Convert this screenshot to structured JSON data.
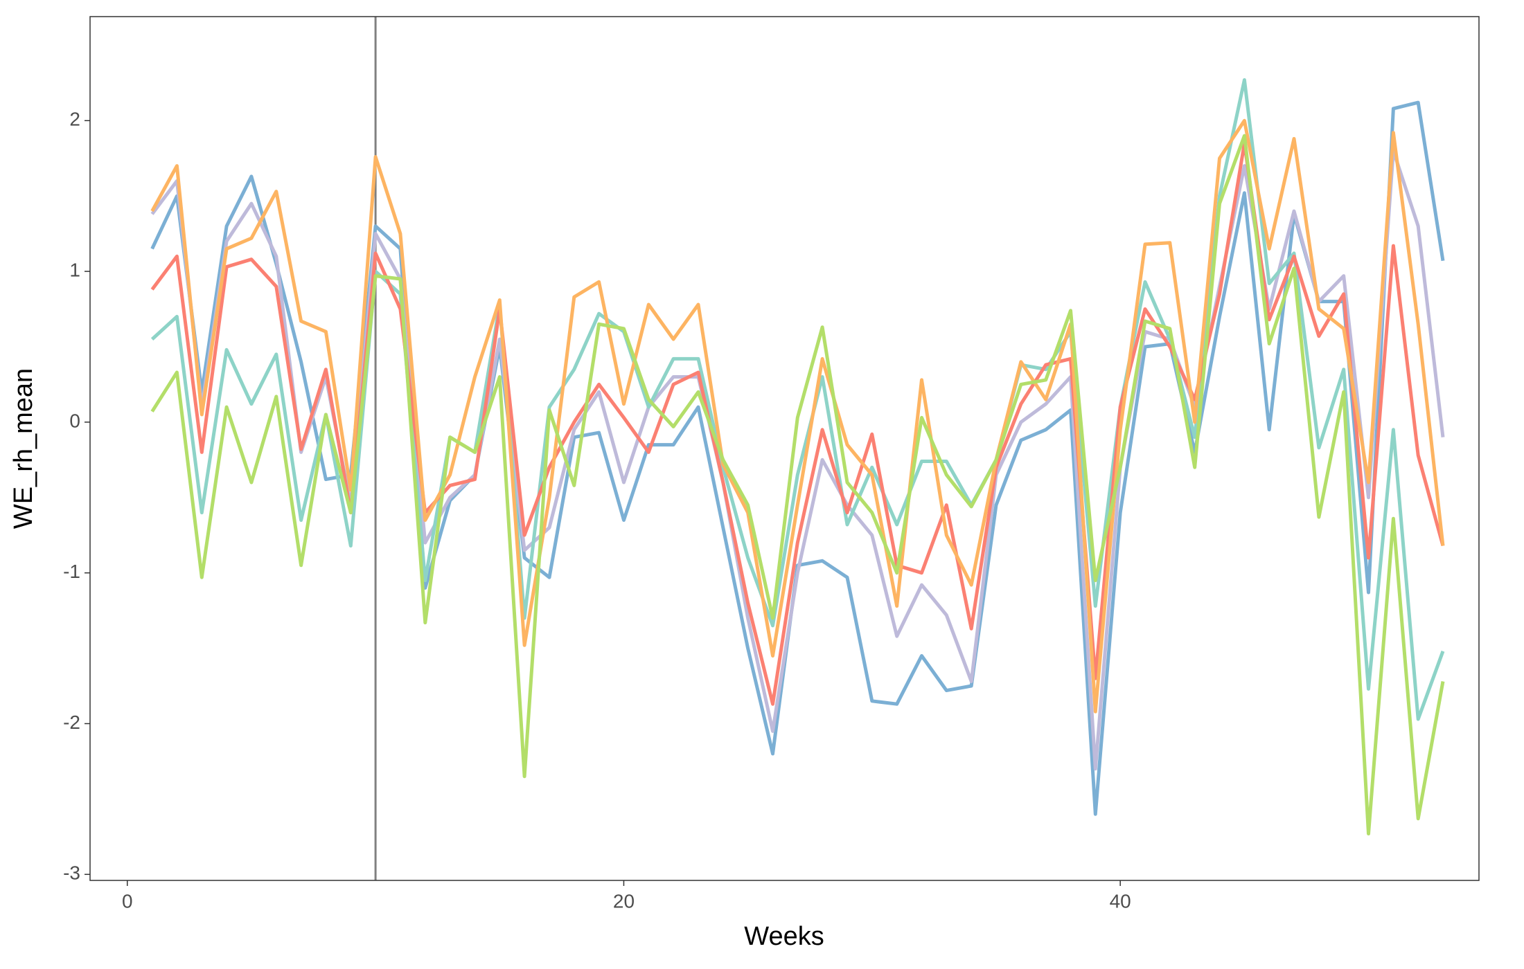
{
  "chart_data": {
    "type": "line",
    "x_label": "Weeks",
    "y_label": "WE_rh_mean",
    "x": [
      1,
      2,
      3,
      4,
      5,
      6,
      7,
      8,
      9,
      10,
      11,
      12,
      13,
      14,
      15,
      16,
      17,
      18,
      19,
      20,
      21,
      22,
      23,
      24,
      25,
      26,
      27,
      28,
      29,
      30,
      31,
      32,
      33,
      34,
      35,
      36,
      37,
      38,
      39,
      40,
      41,
      42,
      43,
      44,
      45,
      46,
      47,
      48,
      49,
      50,
      51,
      52,
      53
    ],
    "xlim": [
      -1.5,
      54.45
    ],
    "xticks": [
      0,
      20,
      40
    ],
    "ylim": [
      -3.04,
      2.69
    ],
    "yticks": [
      -3,
      -2,
      -1,
      0,
      1,
      2
    ],
    "vline": 10,
    "vline_color": "#808080",
    "series": [
      {
        "color": "#7bafd4",
        "values": [
          1.15,
          1.5,
          0.2,
          1.3,
          1.63,
          1.05,
          0.4,
          -0.38,
          -0.35,
          1.3,
          1.15,
          -1.1,
          -0.52,
          -0.35,
          0.5,
          -0.9,
          -1.03,
          -0.1,
          -0.07,
          -0.65,
          -0.15,
          -0.15,
          0.1,
          -0.7,
          -1.5,
          -2.2,
          -0.95,
          -0.92,
          -1.03,
          -1.85,
          -1.87,
          -1.55,
          -1.78,
          -1.75,
          -0.55,
          -0.12,
          -0.05,
          0.08,
          -2.6,
          -0.6,
          0.5,
          0.52,
          -0.2,
          0.7,
          1.52,
          -0.05,
          1.38,
          0.8,
          0.8,
          -1.13,
          2.08,
          2.12,
          1.07
        ]
      },
      {
        "color": "#bebada",
        "values": [
          1.38,
          1.6,
          0.1,
          1.2,
          1.45,
          1.1,
          -0.2,
          0.3,
          -0.55,
          1.25,
          0.95,
          -0.8,
          -0.5,
          -0.35,
          0.55,
          -0.85,
          -0.7,
          -0.05,
          0.2,
          -0.4,
          0.1,
          0.3,
          0.3,
          -0.4,
          -1.3,
          -2.05,
          -1.0,
          -0.25,
          -0.55,
          -0.75,
          -1.42,
          -1.08,
          -1.28,
          -1.72,
          -0.35,
          0.0,
          0.12,
          0.3,
          -2.3,
          -0.3,
          0.6,
          0.55,
          0.1,
          0.9,
          1.7,
          0.75,
          1.4,
          0.8,
          0.97,
          -0.5,
          1.8,
          1.3,
          -0.1
        ]
      },
      {
        "color": "#8dd3c7",
        "values": [
          0.55,
          0.7,
          -0.6,
          0.48,
          0.12,
          0.45,
          -0.65,
          0.05,
          -0.82,
          1.0,
          0.85,
          -1.05,
          -0.1,
          -0.2,
          0.78,
          -1.3,
          0.1,
          0.35,
          0.72,
          0.6,
          0.1,
          0.42,
          0.42,
          -0.3,
          -0.9,
          -1.35,
          -0.35,
          0.3,
          -0.68,
          -0.3,
          -0.68,
          -0.26,
          -0.26,
          -0.55,
          -0.25,
          0.38,
          0.35,
          0.6,
          -1.22,
          0.1,
          0.93,
          0.55,
          -0.1,
          1.5,
          2.27,
          0.92,
          1.12,
          -0.17,
          0.35,
          -1.77,
          -0.05,
          -1.97,
          -1.52
        ]
      },
      {
        "color": "#fb8072",
        "values": [
          0.88,
          1.1,
          -0.2,
          1.03,
          1.08,
          0.9,
          -0.18,
          0.35,
          -0.6,
          1.12,
          0.75,
          -0.6,
          -0.42,
          -0.38,
          0.75,
          -0.75,
          -0.3,
          0.0,
          0.25,
          0.03,
          -0.2,
          0.25,
          0.33,
          -0.4,
          -1.2,
          -1.87,
          -0.8,
          -0.05,
          -0.6,
          -0.08,
          -0.95,
          -1.0,
          -0.55,
          -1.37,
          -0.3,
          0.12,
          0.38,
          0.42,
          -1.7,
          0.1,
          0.75,
          0.5,
          0.15,
          0.85,
          1.85,
          0.68,
          1.1,
          0.57,
          0.85,
          -0.9,
          1.17,
          -0.22,
          -0.82
        ]
      },
      {
        "color": "#fdb462",
        "values": [
          1.4,
          1.7,
          0.05,
          1.15,
          1.22,
          1.53,
          0.67,
          0.6,
          -0.45,
          1.76,
          1.25,
          -0.65,
          -0.35,
          0.3,
          0.81,
          -1.48,
          -0.5,
          0.83,
          0.93,
          0.12,
          0.78,
          0.55,
          0.78,
          -0.28,
          -0.6,
          -1.55,
          -0.55,
          0.42,
          -0.15,
          -0.35,
          -1.22,
          0.28,
          -0.75,
          -1.08,
          -0.25,
          0.4,
          0.15,
          0.65,
          -1.92,
          -0.05,
          1.18,
          1.19,
          0.0,
          1.75,
          2.0,
          1.15,
          1.88,
          0.75,
          0.62,
          -0.4,
          1.92,
          0.65,
          -0.82
        ]
      },
      {
        "color": "#b3de69",
        "values": [
          0.07,
          0.33,
          -1.03,
          0.1,
          -0.4,
          0.17,
          -0.95,
          0.05,
          -0.6,
          0.97,
          0.95,
          -1.33,
          -0.1,
          -0.2,
          0.3,
          -2.35,
          0.08,
          -0.42,
          0.65,
          0.62,
          0.15,
          -0.03,
          0.2,
          -0.25,
          -0.55,
          -1.3,
          0.03,
          0.63,
          -0.4,
          -0.6,
          -1.0,
          0.03,
          -0.35,
          -0.56,
          -0.25,
          0.25,
          0.28,
          0.74,
          -1.05,
          -0.3,
          0.67,
          0.62,
          -0.3,
          1.45,
          1.9,
          0.52,
          1.02,
          -0.63,
          0.2,
          -2.73,
          -0.64,
          -2.63,
          -1.72
        ]
      }
    ]
  }
}
